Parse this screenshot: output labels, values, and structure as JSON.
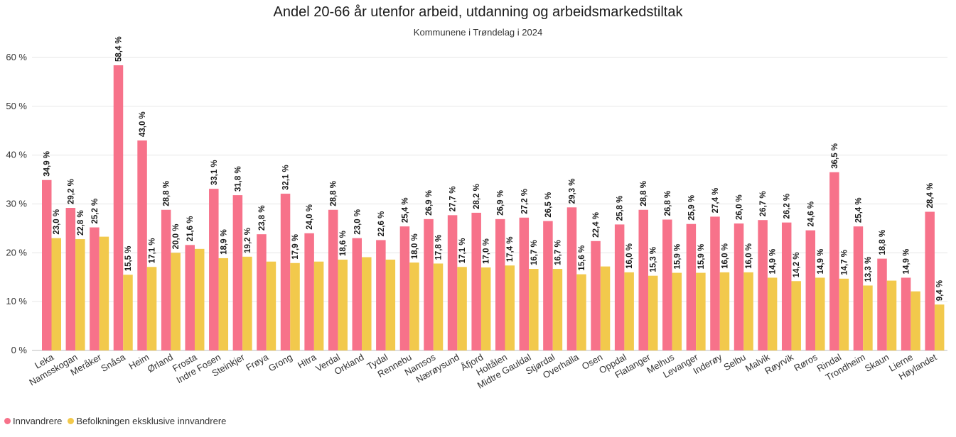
{
  "chart_data": {
    "type": "bar",
    "title": "Andel 20-66 år utenfor arbeid, utdanning og arbeidsmarkedstiltak",
    "subtitle": "Kommunene i Trøndelag i 2024",
    "ylim": [
      0,
      60
    ],
    "yticks": [
      "0 %",
      "10 %",
      "20 %",
      "30 %",
      "40 %",
      "50 %",
      "60 %"
    ],
    "ytick_values": [
      0,
      10,
      20,
      30,
      40,
      50,
      60
    ],
    "grid": true,
    "legend_position": "bottom-left",
    "categories": [
      "Leka",
      "Namsskogan",
      "Meråker",
      "Snåsa",
      "Heim",
      "Ørland",
      "Frosta",
      "Indre Fosen",
      "Steinkjer",
      "Frøya",
      "Grong",
      "Hitra",
      "Verdal",
      "Orkland",
      "Tydal",
      "Rennebu",
      "Namsos",
      "Nærøysund",
      "Åfjord",
      "Holtålen",
      "Midtre Gauldal",
      "Stjørdal",
      "Overhalla",
      "Osen",
      "Oppdal",
      "Flatanger",
      "Melhus",
      "Levanger",
      "Inderøy",
      "Selbu",
      "Malvik",
      "Røyrvik",
      "Røros",
      "Rindal",
      "Trondheim",
      "Skaun",
      "Lierne",
      "Høylandet"
    ],
    "series": [
      {
        "name": "Innvandrere",
        "color": "#f7728a",
        "values": [
          34.9,
          29.2,
          25.2,
          58.4,
          43.0,
          28.8,
          21.6,
          33.1,
          31.8,
          23.8,
          32.1,
          24.0,
          28.8,
          23.0,
          22.6,
          25.4,
          26.9,
          27.7,
          28.2,
          26.9,
          27.2,
          26.5,
          29.3,
          22.4,
          25.8,
          28.8,
          26.8,
          25.9,
          27.4,
          26.0,
          26.7,
          26.2,
          24.6,
          36.5,
          25.4,
          18.8,
          14.9,
          28.4
        ],
        "labels": [
          "34,9 %",
          "29,2 %",
          "25,2 %",
          "58,4 %",
          "43,0 %",
          "28,8 %",
          "21,6 %",
          "33,1 %",
          "31,8 %",
          "23,8 %",
          "32,1 %",
          "24,0 %",
          "28,8 %",
          "23,0 %",
          "22,6 %",
          "25,4 %",
          "26,9 %",
          "27,7 %",
          "28,2 %",
          "26,9 %",
          "27,2 %",
          "26,5 %",
          "29,3 %",
          "22,4 %",
          "25,8 %",
          "28,8 %",
          "26,8 %",
          "25,9 %",
          "27,4 %",
          "26,0 %",
          "26,7 %",
          "26,2 %",
          "24,6 %",
          "36,5 %",
          "25,4 %",
          "18,8 %",
          "14,9 %",
          "28,4 %"
        ]
      },
      {
        "name": "Befolkningen eksklusive innvandrere",
        "color": "#f2c94c",
        "values": [
          23.0,
          22.8,
          23.3,
          15.5,
          17.1,
          20.0,
          20.8,
          18.9,
          19.2,
          18.2,
          17.9,
          18.2,
          18.6,
          19.1,
          18.6,
          18.0,
          17.8,
          17.1,
          17.0,
          17.4,
          16.7,
          16.7,
          15.6,
          17.2,
          16.0,
          15.3,
          15.9,
          15.9,
          16.0,
          16.0,
          14.9,
          14.2,
          14.9,
          14.7,
          13.3,
          14.3,
          12.1,
          9.4
        ],
        "labels": [
          "23,0 %",
          "22,8 %",
          "",
          "15,5 %",
          "17,1 %",
          "20,0 %",
          "",
          "18,9 %",
          "19,2 %",
          "",
          "17,9 %",
          "",
          "18,6 %",
          "",
          "",
          "18,0 %",
          "17,8 %",
          "17,1 %",
          "17,0 %",
          "17,4 %",
          "16,7 %",
          "16,7 %",
          "15,6 %",
          "",
          "16,0 %",
          "15,3 %",
          "15,9 %",
          "15,9 %",
          "16,0 %",
          "16,0 %",
          "14,9 %",
          "14,2 %",
          "14,9 %",
          "14,7 %",
          "13,3 %",
          "",
          "",
          "9,4 %"
        ]
      }
    ]
  }
}
